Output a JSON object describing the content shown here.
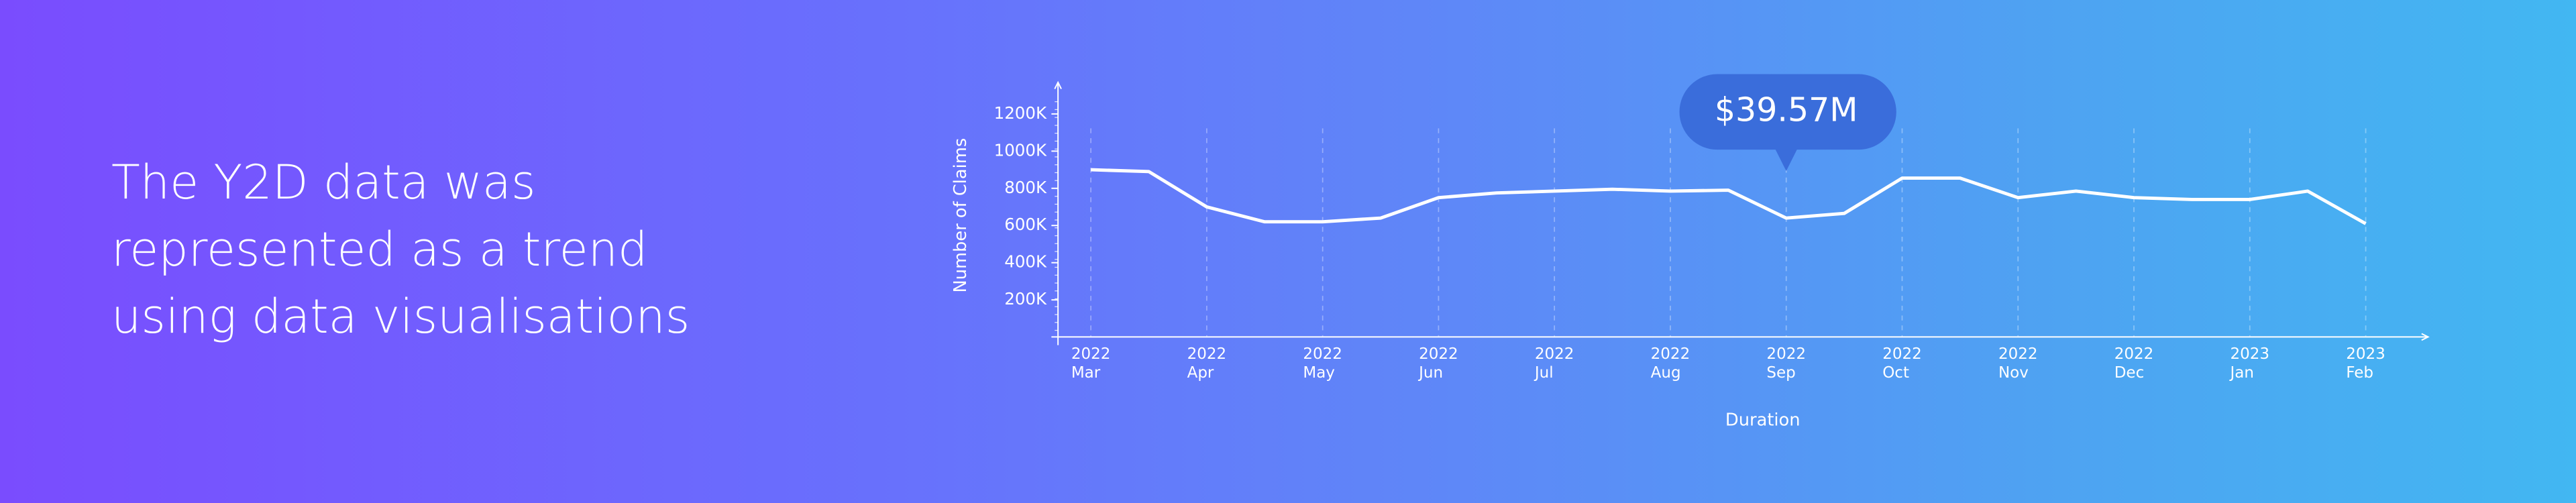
{
  "headline": "The Y2D data was\nrepresented as a trend\nusing data visualisations",
  "chart_data": {
    "type": "line",
    "x_label": "Duration",
    "y_label": "Number of Claims",
    "annotation": "$39.57M",
    "categories": [
      "2022\nMar",
      null,
      "2022\nApr",
      null,
      "2022\nMay",
      null,
      "2022\nJun",
      null,
      "2022\nJul",
      null,
      "2022\nAug",
      null,
      "2022\nSep",
      null,
      "2022\nOct",
      null,
      "2022\nNov",
      null,
      "2022\nDec",
      null,
      "2023\nJan",
      null,
      "2023\nFeb"
    ],
    "series": [
      {
        "name": "Claims",
        "color": "#ffffff",
        "values": [
          900000,
          890000,
          700000,
          620000,
          620000,
          640000,
          750000,
          775000,
          785000,
          795000,
          785000,
          790000,
          640000,
          665000,
          855000,
          855000,
          750000,
          785000,
          750000,
          740000,
          740000,
          785000,
          610000
        ]
      }
    ],
    "ylim": [
      -30000,
      1370000
    ],
    "yticks": [
      {
        "value": 200000,
        "label": "200K"
      },
      {
        "value": 400000,
        "label": "400K"
      },
      {
        "value": 600000,
        "label": "600K"
      },
      {
        "value": 800000,
        "label": "800K"
      },
      {
        "value": 1000000,
        "label": "1000K"
      },
      {
        "value": 1200000,
        "label": "1200K"
      }
    ],
    "grid": true,
    "annotation_index": 12
  }
}
